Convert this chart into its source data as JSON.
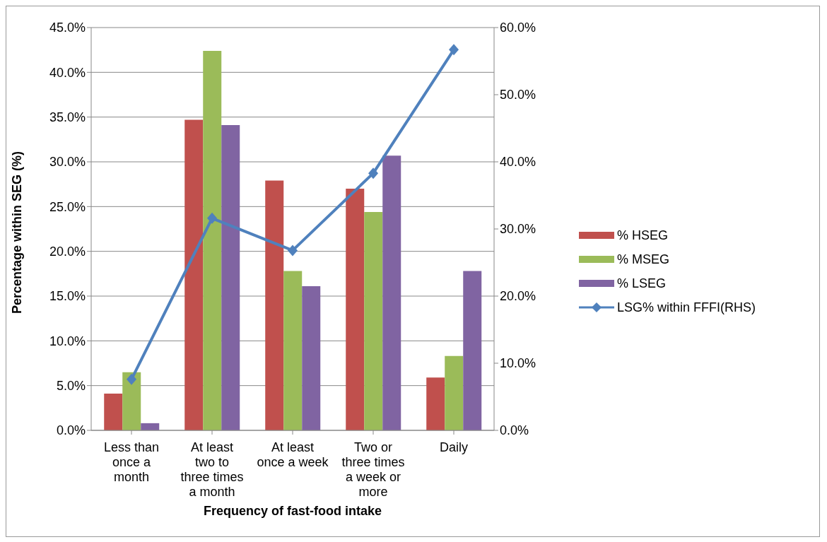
{
  "chart_data": {
    "type": "bar",
    "xlabel": "Frequency of fast-food intake",
    "ylabel": "Percentage within SEG (%)",
    "categories": [
      "Less than once a month",
      "At least two to three times a month",
      "At least once a week",
      "Two or three times a week or more",
      "Daily"
    ],
    "series": [
      {
        "name": "% HSEG",
        "color": "#c0504d",
        "values": [
          4.1,
          34.7,
          27.9,
          27.0,
          5.9
        ]
      },
      {
        "name": "% MSEG",
        "color": "#9bbb59",
        "values": [
          6.5,
          42.4,
          17.8,
          24.4,
          8.3
        ]
      },
      {
        "name": "% LSEG",
        "color": "#8064a2",
        "values": [
          0.8,
          34.1,
          16.1,
          30.7,
          17.8
        ]
      },
      {
        "name": "LSG% within FFFI(RHS)",
        "color": "#4f81bd",
        "type": "line",
        "axis": "y2",
        "values": [
          7.6,
          31.6,
          26.8,
          38.3,
          56.7
        ]
      }
    ],
    "ylim": [
      0,
      45
    ],
    "yticks": [
      {
        "value": 0,
        "label": "0.0%"
      },
      {
        "value": 5,
        "label": "5.0%"
      },
      {
        "value": 10,
        "label": "10.0%"
      },
      {
        "value": 15,
        "label": "15.0%"
      },
      {
        "value": 20,
        "label": "20.0%"
      },
      {
        "value": 25,
        "label": "25.0%"
      },
      {
        "value": 30,
        "label": "30.0%"
      },
      {
        "value": 35,
        "label": "35.0%"
      },
      {
        "value": 40,
        "label": "40.0%"
      },
      {
        "value": 45,
        "label": "45.0%"
      }
    ],
    "y2lim": [
      0,
      60
    ],
    "y2ticks": [
      {
        "value": 0,
        "label": "0.0%"
      },
      {
        "value": 10,
        "label": "10.0%"
      },
      {
        "value": 20,
        "label": "20.0%"
      },
      {
        "value": 30,
        "label": "30.0%"
      },
      {
        "value": 40,
        "label": "40.0%"
      },
      {
        "value": 50,
        "label": "50.0%"
      },
      {
        "value": 60,
        "label": "60.0%"
      }
    ],
    "grid": "y",
    "legend": "right",
    "marker": "diamond"
  }
}
